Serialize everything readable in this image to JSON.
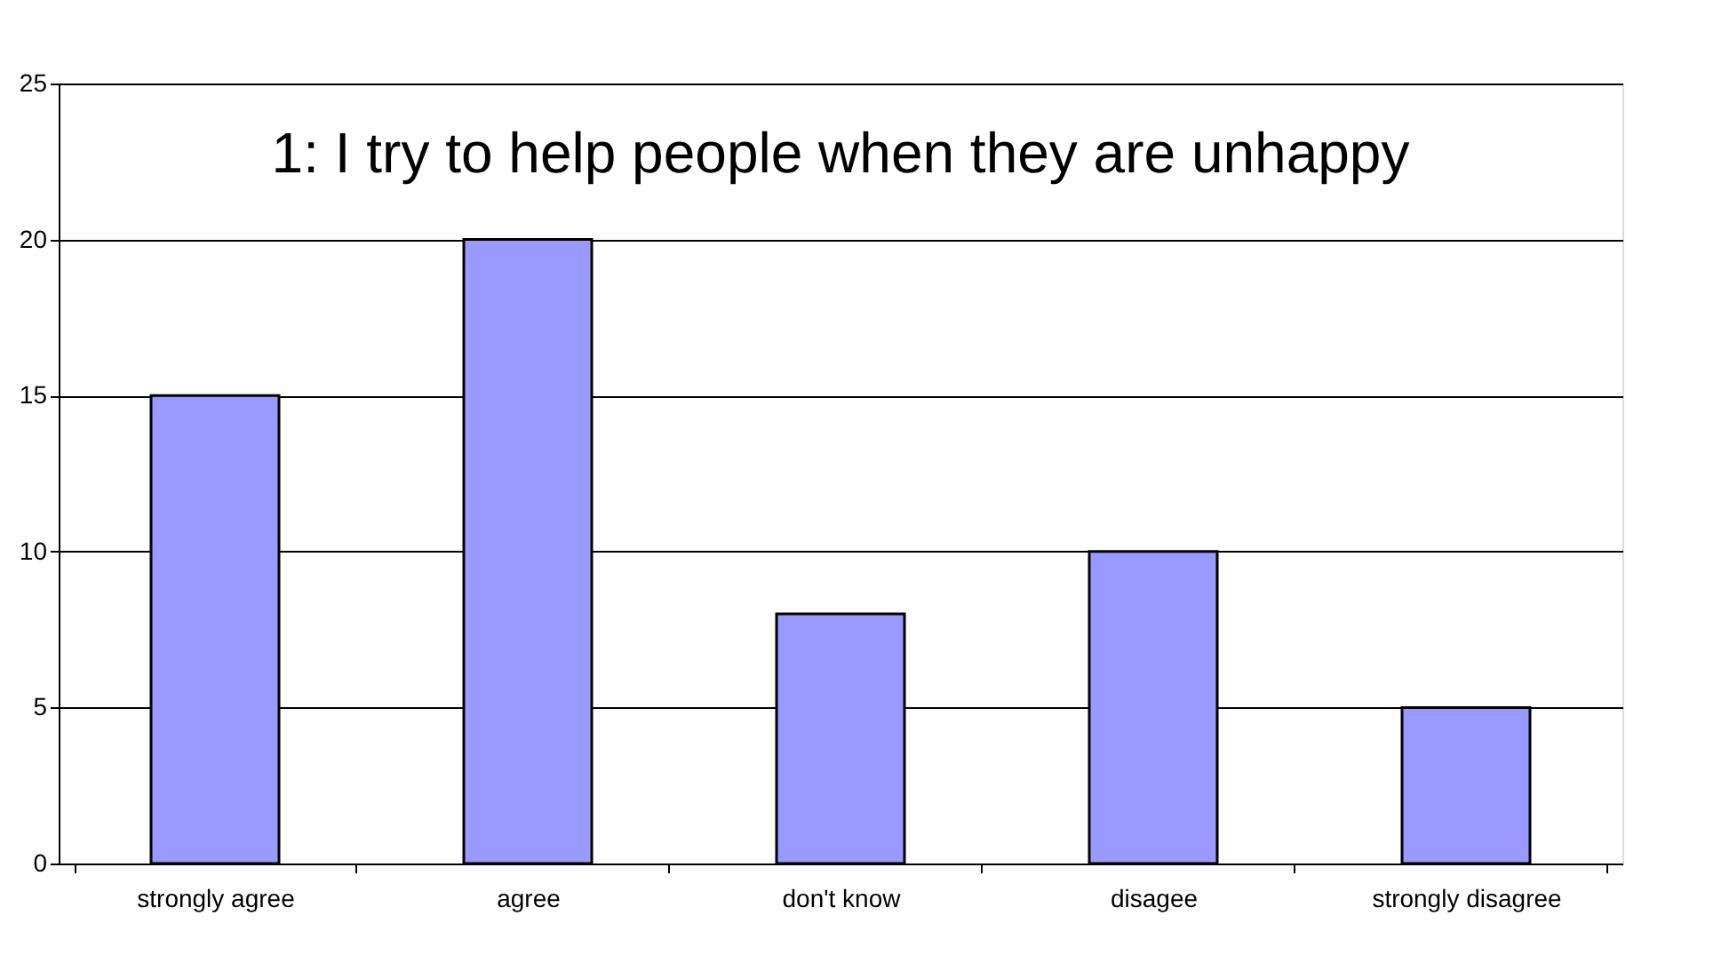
{
  "chart_data": {
    "type": "bar",
    "title": "1: I try to help people when they are unhappy",
    "categories": [
      "strongly agree",
      "agree",
      "don't know",
      "disagee",
      "strongly disagree"
    ],
    "values": [
      15,
      20,
      8,
      10,
      5
    ],
    "color": "#9999ff",
    "ylim": [
      0,
      25
    ],
    "yticks": [
      0,
      5,
      10,
      15,
      20,
      25
    ],
    "grid": "y"
  }
}
